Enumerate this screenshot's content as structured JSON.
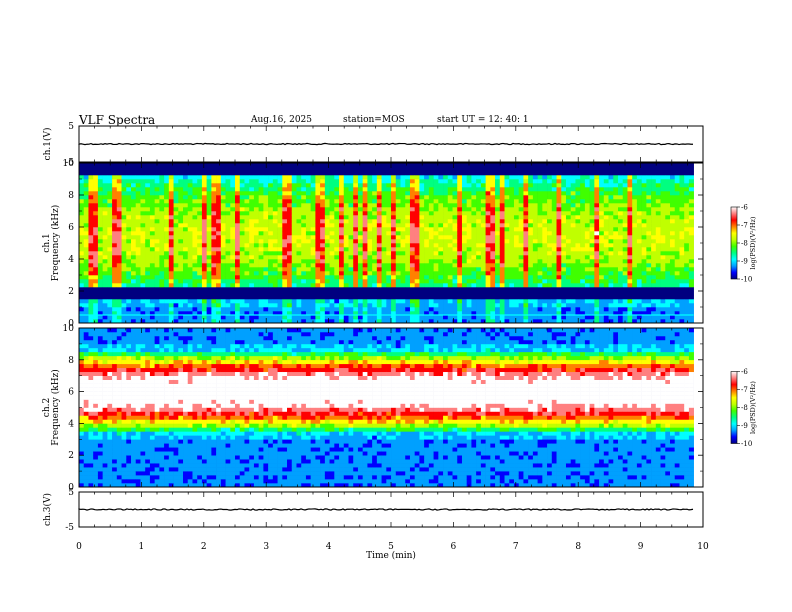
{
  "header": {
    "title": "VLF Spectra",
    "date": "Aug.16, 2025",
    "station": "station=MOS",
    "start_ut": "start  UT =   12: 40: 1"
  },
  "chart_data": {
    "type": "heatmap",
    "x_axis": {
      "label": "Time  (min)",
      "range": [
        0,
        10
      ],
      "ticks": [
        "0",
        "1",
        "2",
        "3",
        "4",
        "5",
        "6",
        "7",
        "8",
        "9",
        "10"
      ],
      "data_end": 9.85
    },
    "panels": [
      {
        "id": "ch1v",
        "kind": "waveform",
        "ylabel": "ch.1(V)",
        "yrange": [
          -5,
          5
        ],
        "ticks": [
          "5",
          "-5"
        ],
        "level": 0
      },
      {
        "id": "ch1",
        "kind": "spectrogram",
        "ylabel_line1": "ch.1",
        "ylabel_line2": "Frequency  (kHz)",
        "yrange": [
          0,
          10
        ],
        "ticks": [
          "0",
          "2",
          "4",
          "6",
          "8",
          "10"
        ],
        "band_center_khz": 5.5,
        "band_halfwidth_khz": 3.5,
        "band_intensity": 0.35,
        "blank_band_khz": [
          1.5,
          2.2
        ],
        "line_khz": 0.5,
        "vertical_lines": true
      },
      {
        "id": "ch2",
        "kind": "spectrogram",
        "ylabel_line1": "ch.2",
        "ylabel_line2": "Frequency  (kHz)",
        "yrange": [
          0,
          10
        ],
        "ticks": [
          "0",
          "2",
          "4",
          "6",
          "8",
          "10"
        ],
        "band_center_khz": 6.0,
        "band_halfwidth_khz": 2.3,
        "band_intensity": 0.85,
        "blank_band_khz": [],
        "line_khz": null,
        "vertical_lines": false
      },
      {
        "id": "ch3v",
        "kind": "waveform",
        "ylabel": "ch.3(V)",
        "yrange": [
          -5,
          5
        ],
        "ticks": [
          "5",
          "-5"
        ],
        "level": 0
      }
    ],
    "colorbar": {
      "label": "log(PSD)(V²/Hz)",
      "range": [
        -10,
        -6
      ],
      "ticks": [
        "-6",
        "-7",
        "-8",
        "-9",
        "-10"
      ],
      "colors": [
        "#000080",
        "#0000ff",
        "#00a0ff",
        "#00ffff",
        "#00ff80",
        "#40ff00",
        "#c0ff00",
        "#ffff00",
        "#ff8000",
        "#ff0000",
        "#ff8080",
        "#ffffff"
      ]
    }
  }
}
